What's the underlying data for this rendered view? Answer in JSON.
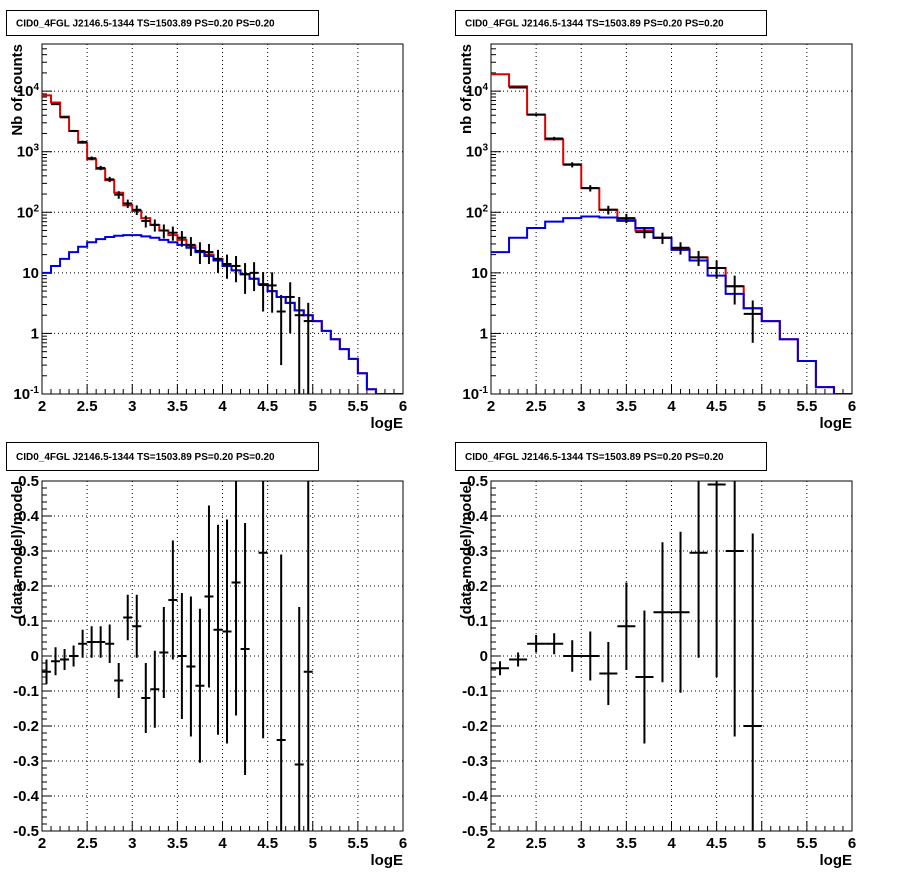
{
  "chart_data": [
    {
      "type": "line",
      "title": "CID0_4FGL J2146.5-1344 TS=1503.89 PS=0.20 PS=0.20",
      "xlabel": "logE",
      "ylabel": "Nb of counts",
      "xlim": [
        2,
        6
      ],
      "ylim": [
        0.1,
        60000
      ],
      "yscale": "log",
      "grid": true,
      "x_ticks": [
        "2",
        "2.5",
        "3",
        "3.5",
        "4",
        "4.5",
        "5",
        "5.5",
        "6"
      ],
      "y_ticks": [
        "10^-1",
        "1",
        "10",
        "10^2",
        "10^3",
        "10^4"
      ],
      "series": [
        {
          "color": "#e00000",
          "style": "step",
          "bin_edges": [
            2.0,
            2.1,
            2.2,
            2.3,
            2.4,
            2.5,
            2.6,
            2.7,
            2.8,
            2.9,
            3.0,
            3.1,
            3.2,
            3.3,
            3.4,
            3.5,
            3.6,
            3.7,
            3.8,
            3.9,
            4.0,
            4.1,
            4.2,
            4.3,
            4.4,
            4.5,
            4.6,
            4.7,
            4.8,
            4.9,
            5.0,
            5.1,
            5.2,
            5.3,
            5.4,
            5.5,
            5.6,
            5.7,
            5.8,
            5.9,
            6.0
          ],
          "values": [
            8500,
            6500,
            3800,
            2200,
            1400,
            750,
            520,
            340,
            210,
            130,
            105,
            80,
            62,
            50,
            42,
            35,
            28,
            23,
            20,
            17,
            13,
            11,
            9.5,
            8,
            6.5,
            5,
            4,
            3.2,
            2.4,
            2.0,
            1.6,
            1.1,
            0.8,
            0.55,
            0.38,
            0.22,
            0.12,
            0.1,
            0.1,
            0.1
          ]
        },
        {
          "color": "#0000dd",
          "style": "step",
          "bin_edges": [
            2.0,
            2.1,
            2.2,
            2.3,
            2.4,
            2.5,
            2.6,
            2.7,
            2.8,
            2.9,
            3.0,
            3.1,
            3.2,
            3.3,
            3.4,
            3.5,
            3.6,
            3.7,
            3.8,
            3.9,
            4.0,
            4.1,
            4.2,
            4.3,
            4.4,
            4.5,
            4.6,
            4.7,
            4.8,
            4.9,
            5.0,
            5.1,
            5.2,
            5.3,
            5.4,
            5.5,
            5.6,
            5.7,
            5.8,
            5.9,
            6.0
          ],
          "values": [
            10,
            13,
            17,
            22,
            27,
            32,
            36,
            39,
            41,
            42,
            42,
            40,
            38,
            35,
            32,
            29,
            26,
            22,
            19,
            16,
            13,
            11,
            9.5,
            8,
            6.5,
            5,
            4,
            3.2,
            2.4,
            2.0,
            1.6,
            1.1,
            0.8,
            0.55,
            0.38,
            0.22,
            0.12,
            0.1,
            0.1,
            0.1
          ]
        },
        {
          "color": "#000000",
          "style": "points",
          "points": [
            {
              "x": 2.15,
              "y": 6100,
              "e": 150
            },
            {
              "x": 2.25,
              "y": 3700,
              "e": 120
            },
            {
              "x": 2.35,
              "y": 2200,
              "e": 90
            },
            {
              "x": 2.45,
              "y": 1450,
              "e": 75
            },
            {
              "x": 2.55,
              "y": 780,
              "e": 55
            },
            {
              "x": 2.65,
              "y": 540,
              "e": 45
            },
            {
              "x": 2.75,
              "y": 350,
              "e": 35
            },
            {
              "x": 2.85,
              "y": 195,
              "e": 28
            },
            {
              "x": 2.95,
              "y": 140,
              "e": 22
            },
            {
              "x": 3.05,
              "y": 110,
              "e": 20
            },
            {
              "x": 3.15,
              "y": 72,
              "e": 16
            },
            {
              "x": 3.25,
              "y": 62,
              "e": 14
            },
            {
              "x": 3.35,
              "y": 50,
              "e": 13
            },
            {
              "x": 3.45,
              "y": 46,
              "e": 12
            },
            {
              "x": 3.55,
              "y": 38,
              "e": 11
            },
            {
              "x": 3.65,
              "y": 29,
              "e": 10
            },
            {
              "x": 3.75,
              "y": 23,
              "e": 9
            },
            {
              "x": 3.85,
              "y": 22,
              "e": 8
            },
            {
              "x": 3.95,
              "y": 17,
              "e": 7
            },
            {
              "x": 4.05,
              "y": 14,
              "e": 6
            },
            {
              "x": 4.15,
              "y": 13,
              "e": 6
            },
            {
              "x": 4.25,
              "y": 9.5,
              "e": 5
            },
            {
              "x": 4.35,
              "y": 10,
              "e": 5
            },
            {
              "x": 4.45,
              "y": 6.3,
              "e": 4
            },
            {
              "x": 4.55,
              "y": 6.2,
              "e": 4
            },
            {
              "x": 4.65,
              "y": 2.3,
              "e": 2
            },
            {
              "x": 4.75,
              "y": 4.0,
              "e": 3
            },
            {
              "x": 4.85,
              "y": 2.0,
              "e": 2.0
            },
            {
              "x": 4.95,
              "y": 1.6,
              "e": 1.6
            }
          ]
        }
      ]
    },
    {
      "type": "line",
      "title": "CID0_4FGL J2146.5-1344 TS=1503.89 PS=0.20 PS=0.20",
      "xlabel": "logE",
      "ylabel": "nb of counts",
      "xlim": [
        2,
        6
      ],
      "ylim": [
        0.1,
        60000
      ],
      "yscale": "log",
      "grid": true,
      "x_ticks": [
        "2",
        "2.5",
        "3",
        "3.5",
        "4",
        "4.5",
        "5",
        "5.5",
        "6"
      ],
      "y_ticks": [
        "10^-1",
        "1",
        "10",
        "10^2",
        "10^3",
        "10^4"
      ],
      "series": [
        {
          "color": "#e00000",
          "style": "step",
          "bin_edges": [
            2.0,
            2.2,
            2.4,
            2.6,
            2.8,
            3.0,
            3.2,
            3.4,
            3.6,
            3.8,
            4.0,
            4.2,
            4.4,
            4.6,
            4.8,
            5.0,
            5.2,
            5.4,
            5.6,
            5.8,
            6.0
          ],
          "values": [
            19000,
            12000,
            4100,
            1600,
            620,
            250,
            110,
            75,
            50,
            38,
            25,
            18,
            12,
            6,
            2.6,
            1.6,
            0.8,
            0.35,
            0.13,
            0.1
          ]
        },
        {
          "color": "#0000dd",
          "style": "step",
          "bin_edges": [
            2.0,
            2.2,
            2.4,
            2.6,
            2.8,
            3.0,
            3.2,
            3.4,
            3.6,
            3.8,
            4.0,
            4.2,
            4.4,
            4.6,
            4.8,
            5.0,
            5.2,
            5.4,
            5.6,
            5.8,
            6.0
          ],
          "values": [
            22,
            38,
            55,
            70,
            80,
            85,
            82,
            72,
            55,
            38,
            24,
            16,
            9,
            4.5,
            2.6,
            1.6,
            0.8,
            0.35,
            0.13,
            0.1
          ]
        },
        {
          "color": "#000000",
          "style": "points",
          "points": [
            {
              "x": 2.3,
              "y": 11500,
              "e": 300
            },
            {
              "x": 2.5,
              "y": 4100,
              "e": 200
            },
            {
              "x": 2.7,
              "y": 1650,
              "e": 110
            },
            {
              "x": 2.9,
              "y": 610,
              "e": 60
            },
            {
              "x": 3.1,
              "y": 250,
              "e": 30
            },
            {
              "x": 3.3,
              "y": 110,
              "e": 18
            },
            {
              "x": 3.5,
              "y": 80,
              "e": 14
            },
            {
              "x": 3.7,
              "y": 47,
              "e": 10
            },
            {
              "x": 3.9,
              "y": 38,
              "e": 8
            },
            {
              "x": 4.1,
              "y": 26,
              "e": 6
            },
            {
              "x": 4.3,
              "y": 18,
              "e": 5
            },
            {
              "x": 4.5,
              "y": 12,
              "e": 4
            },
            {
              "x": 4.7,
              "y": 6,
              "e": 3
            },
            {
              "x": 4.9,
              "y": 2.1,
              "e": 1.4
            }
          ]
        }
      ]
    },
    {
      "type": "scatter",
      "title": "CID0_4FGL J2146.5-1344 TS=1503.89 PS=0.20 PS=0.20",
      "xlabel": "logE",
      "ylabel": "(data-model)/model",
      "xlim": [
        2,
        6
      ],
      "ylim": [
        -0.5,
        0.5
      ],
      "grid": true,
      "x_ticks": [
        "2",
        "2.5",
        "3",
        "3.5",
        "4",
        "4.5",
        "5",
        "5.5",
        "6"
      ],
      "y_ticks": [
        "-0.5",
        "-0.4",
        "-0.3",
        "-0.2",
        "-0.1",
        "0",
        "0.1",
        "0.2",
        "0.3",
        "0.4",
        "0.5"
      ],
      "points": [
        {
          "x": 2.05,
          "y": -0.045,
          "e": 0.035
        },
        {
          "x": 2.15,
          "y": -0.015,
          "e": 0.04
        },
        {
          "x": 2.25,
          "y": -0.01,
          "e": 0.03
        },
        {
          "x": 2.35,
          "y": 0.0,
          "e": 0.03
        },
        {
          "x": 2.45,
          "y": 0.035,
          "e": 0.04
        },
        {
          "x": 2.55,
          "y": 0.04,
          "e": 0.045
        },
        {
          "x": 2.65,
          "y": 0.04,
          "e": 0.045
        },
        {
          "x": 2.75,
          "y": 0.035,
          "e": 0.055
        },
        {
          "x": 2.85,
          "y": -0.07,
          "e": 0.05
        },
        {
          "x": 2.95,
          "y": 0.11,
          "e": 0.065
        },
        {
          "x": 3.05,
          "y": 0.085,
          "e": 0.09
        },
        {
          "x": 3.15,
          "y": -0.12,
          "e": 0.1
        },
        {
          "x": 3.25,
          "y": -0.095,
          "e": 0.11
        },
        {
          "x": 3.35,
          "y": 0.01,
          "e": 0.13
        },
        {
          "x": 3.45,
          "y": 0.16,
          "e": 0.17
        },
        {
          "x": 3.55,
          "y": 0.0,
          "e": 0.18
        },
        {
          "x": 3.65,
          "y": -0.03,
          "e": 0.2
        },
        {
          "x": 3.75,
          "y": -0.085,
          "e": 0.22
        },
        {
          "x": 3.85,
          "y": 0.17,
          "e": 0.26
        },
        {
          "x": 3.95,
          "y": 0.075,
          "e": 0.3
        },
        {
          "x": 4.05,
          "y": 0.07,
          "e": 0.32
        },
        {
          "x": 4.15,
          "y": 0.21,
          "e": 0.38
        },
        {
          "x": 4.25,
          "y": 0.02,
          "e": 0.36
        },
        {
          "x": 4.45,
          "y": 0.295,
          "e": 0.53
        },
        {
          "x": 4.65,
          "y": -0.24,
          "e": 0.53
        },
        {
          "x": 4.85,
          "y": -0.31,
          "e": 0.45
        },
        {
          "x": 4.95,
          "y": -0.045,
          "e": 0.55
        }
      ]
    },
    {
      "type": "scatter",
      "title": "CID0_4FGL J2146.5-1344 TS=1503.89 PS=0.20 PS=0.20",
      "xlabel": "logE",
      "ylabel": "(data-model)/model",
      "xlim": [
        2,
        6
      ],
      "ylim": [
        -0.5,
        0.5
      ],
      "grid": true,
      "x_ticks": [
        "2",
        "2.5",
        "3",
        "3.5",
        "4",
        "4.5",
        "5",
        "5.5",
        "6"
      ],
      "y_ticks": [
        "-0.5",
        "-0.4",
        "-0.3",
        "-0.2",
        "-0.1",
        "0",
        "0.1",
        "0.2",
        "0.3",
        "0.4",
        "0.5"
      ],
      "points": [
        {
          "x": 2.1,
          "y": -0.035,
          "e": 0.02
        },
        {
          "x": 2.3,
          "y": -0.01,
          "e": 0.02
        },
        {
          "x": 2.5,
          "y": 0.035,
          "e": 0.025
        },
        {
          "x": 2.7,
          "y": 0.035,
          "e": 0.03
        },
        {
          "x": 2.9,
          "y": 0.0,
          "e": 0.045
        },
        {
          "x": 3.1,
          "y": 0.0,
          "e": 0.07
        },
        {
          "x": 3.3,
          "y": -0.05,
          "e": 0.09
        },
        {
          "x": 3.5,
          "y": 0.085,
          "e": 0.125
        },
        {
          "x": 3.7,
          "y": -0.06,
          "e": 0.19
        },
        {
          "x": 3.9,
          "y": 0.125,
          "e": 0.2
        },
        {
          "x": 4.1,
          "y": 0.125,
          "e": 0.23
        },
        {
          "x": 4.3,
          "y": 0.295,
          "e": 0.3
        },
        {
          "x": 4.5,
          "y": 0.49,
          "e": 0.55
        },
        {
          "x": 4.7,
          "y": 0.3,
          "e": 0.53
        },
        {
          "x": 4.9,
          "y": -0.2,
          "e": 0.55
        }
      ]
    }
  ]
}
